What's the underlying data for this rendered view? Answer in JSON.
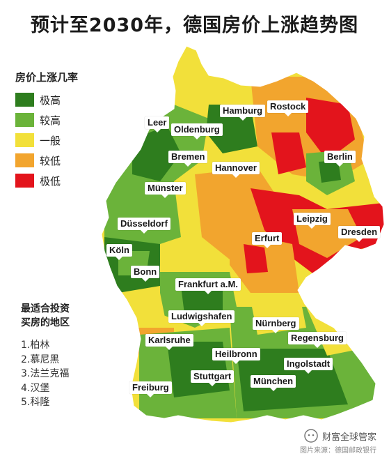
{
  "title": "预计至2030年，德国房价上涨趋势图",
  "legend": {
    "title": "房价上涨几率",
    "items": [
      {
        "label": "极高",
        "color": "#2e7d1e"
      },
      {
        "label": "较高",
        "color": "#6bb33a"
      },
      {
        "label": "一般",
        "color": "#f2e03a"
      },
      {
        "label": "较低",
        "color": "#f2a52e"
      },
      {
        "label": "极低",
        "color": "#e3141c"
      }
    ]
  },
  "best_areas": {
    "title_line1": "最适合投资",
    "title_line2": "买房的地区",
    "items": [
      "1.柏林",
      "2.慕尼黑",
      "3.法兰克福",
      "4.汉堡",
      "5.科隆"
    ]
  },
  "cities": {
    "hamburg": "Hamburg",
    "rostock": "Rostock",
    "leer": "Leer",
    "oldenburg": "Oldenburg",
    "bremen": "Bremen",
    "hannover": "Hannover",
    "berlin": "Berlin",
    "muenster": "Münster",
    "duesseldorf": "Düsseldorf",
    "leipzig": "Leipzig",
    "dresden": "Dresden",
    "koeln": "Köln",
    "erfurt": "Erfurt",
    "bonn": "Bonn",
    "frankfurt": "Frankfurt a.M.",
    "ludwigshafen": "Ludwigshafen",
    "nuernberg": "Nürnberg",
    "karlsruhe": "Karlsruhe",
    "regensburg": "Regensburg",
    "heilbronn": "Heilbronn",
    "ingolstadt": "Ingolstadt",
    "stuttgart": "Stuttgart",
    "muenchen": "München",
    "freiburg": "Freiburg"
  },
  "watermark": {
    "brand": "财富全球管家",
    "source": "图片来源：德国邮政银行"
  }
}
